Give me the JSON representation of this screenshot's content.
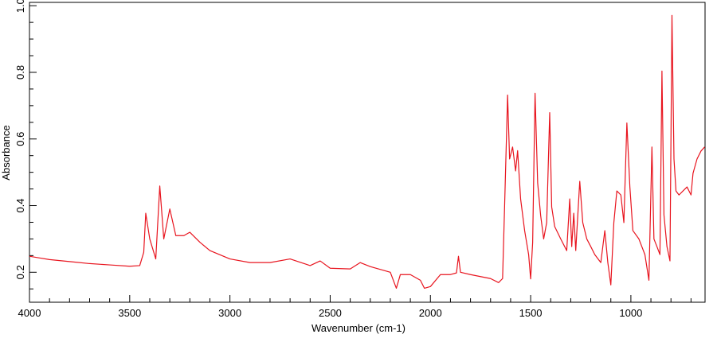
{
  "chart_data": {
    "type": "line",
    "x_label": "Wavenumber (cm-1)",
    "y_label": "Absorbance",
    "xlim": [
      4000,
      630
    ],
    "ylim": [
      0.11,
      1.01
    ],
    "xticks": [
      4000,
      3500,
      3000,
      2500,
      2000,
      1500,
      1000
    ],
    "yticks": [
      0.2,
      0.4,
      0.6,
      0.8,
      {
        "value": 1,
        "label": "1.0"
      }
    ],
    "xminor_ticks": [
      3900,
      3800,
      3700,
      3600,
      3400,
      3300,
      3200,
      3100,
      2900,
      2800,
      2700,
      2600,
      2400,
      2300,
      2200,
      2100,
      1900,
      1800,
      1700,
      1600,
      1400,
      1300,
      1200,
      1100,
      900,
      800,
      700
    ],
    "yminor_ticks": [
      0.15,
      0.25,
      0.3,
      0.35,
      0.45,
      0.5,
      0.55,
      0.65,
      0.7,
      0.75,
      0.85,
      0.9,
      0.95
    ],
    "x_reversed": true,
    "series": [
      {
        "color": "#e8141e",
        "x": [
          4000,
          3950,
          3900,
          3800,
          3700,
          3600,
          3500,
          3450,
          3430,
          3420,
          3400,
          3370,
          3350,
          3330,
          3300,
          3270,
          3230,
          3200,
          3150,
          3100,
          3000,
          2900,
          2800,
          2700,
          2600,
          2550,
          2500,
          2400,
          2350,
          2300,
          2200,
          2170,
          2150,
          2100,
          2050,
          2030,
          2000,
          1950,
          1900,
          1870,
          1860,
          1850,
          1800,
          1700,
          1660,
          1640,
          1630,
          1615,
          1605,
          1590,
          1575,
          1565,
          1550,
          1530,
          1510,
          1500,
          1490,
          1478,
          1465,
          1450,
          1435,
          1420,
          1405,
          1395,
          1380,
          1350,
          1320,
          1305,
          1295,
          1285,
          1275,
          1255,
          1240,
          1220,
          1200,
          1180,
          1150,
          1130,
          1115,
          1100,
          1085,
          1070,
          1050,
          1035,
          1020,
          1005,
          990,
          960,
          930,
          910,
          895,
          885,
          870,
          855,
          845,
          835,
          820,
          805,
          795,
          785,
          775,
          760,
          740,
          720,
          700,
          690,
          670,
          650,
          632
        ],
        "values": [
          0.248,
          0.243,
          0.238,
          0.232,
          0.226,
          0.222,
          0.218,
          0.22,
          0.26,
          0.377,
          0.3,
          0.24,
          0.459,
          0.3,
          0.39,
          0.31,
          0.31,
          0.32,
          0.29,
          0.265,
          0.24,
          0.229,
          0.229,
          0.24,
          0.22,
          0.234,
          0.212,
          0.21,
          0.229,
          0.217,
          0.2,
          0.152,
          0.193,
          0.193,
          0.176,
          0.152,
          0.157,
          0.193,
          0.193,
          0.198,
          0.248,
          0.2,
          0.193,
          0.181,
          0.169,
          0.181,
          0.396,
          0.732,
          0.54,
          0.576,
          0.504,
          0.565,
          0.42,
          0.325,
          0.253,
          0.18,
          0.289,
          0.737,
          0.468,
          0.37,
          0.3,
          0.349,
          0.679,
          0.396,
          0.337,
          0.3,
          0.265,
          0.42,
          0.277,
          0.377,
          0.265,
          0.473,
          0.349,
          0.3,
          0.277,
          0.253,
          0.229,
          0.325,
          0.229,
          0.162,
          0.349,
          0.444,
          0.432,
          0.349,
          0.648,
          0.456,
          0.325,
          0.3,
          0.253,
          0.176,
          0.576,
          0.3,
          0.277,
          0.253,
          0.804,
          0.372,
          0.277,
          0.234,
          0.971,
          0.54,
          0.444,
          0.432,
          0.444,
          0.456,
          0.432,
          0.497,
          0.54,
          0.564,
          0.576
        ]
      }
    ]
  }
}
